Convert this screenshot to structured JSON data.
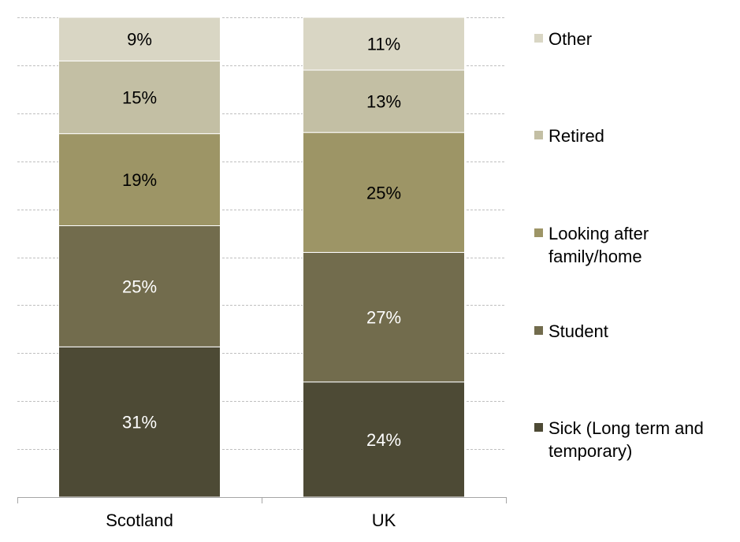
{
  "chart_data": {
    "type": "bar",
    "stacked": true,
    "percent": true,
    "categories": [
      "Scotland",
      "UK"
    ],
    "series": [
      {
        "name": "Sick (Long term and temporary)",
        "values": [
          31,
          24
        ],
        "labels": [
          "31%",
          "24%"
        ],
        "color": "#4d4a35",
        "label_color": "#ffffff"
      },
      {
        "name": "Student",
        "values": [
          25,
          27
        ],
        "labels": [
          "25%",
          "27%"
        ],
        "color": "#726c4d",
        "label_color": "#ffffff"
      },
      {
        "name": "Looking after family/home",
        "values": [
          19,
          25
        ],
        "labels": [
          "19%",
          "25%"
        ],
        "color": "#9d9566",
        "label_color": "#000000"
      },
      {
        "name": "Retired",
        "values": [
          15,
          13
        ],
        "labels": [
          "15%",
          "13%"
        ],
        "color": "#c3bfa4",
        "label_color": "#000000"
      },
      {
        "name": "Other",
        "values": [
          9,
          11
        ],
        "labels": [
          "9%",
          "11%"
        ],
        "color": "#d9d6c4",
        "label_color": "#000000"
      }
    ],
    "ylim": [
      0,
      100
    ],
    "grid": true,
    "legend_position": "right",
    "title": "",
    "xlabel": "",
    "ylabel": ""
  }
}
